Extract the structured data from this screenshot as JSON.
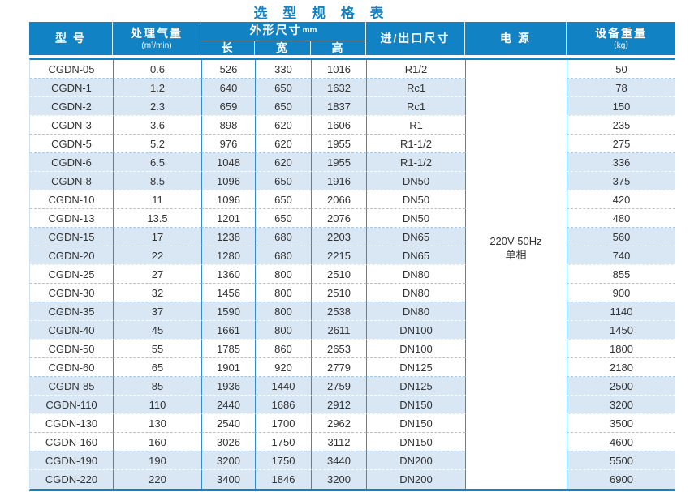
{
  "title": "选 型 规 格 表",
  "colors": {
    "accent": "#1182c4",
    "header_bg": "#1182c4",
    "stripe": "#d9e6f4",
    "line_blue": "#2f8fce",
    "dash_light": "#a3c7e6"
  },
  "header": {
    "model": "型 号",
    "capacity": "处理气量",
    "capacity_unit": "(m³/min)",
    "dimensions": "外形尺寸",
    "dimensions_unit": "mm",
    "length": "长",
    "width": "宽",
    "height": "高",
    "inlet_outlet": "进/出口尺寸",
    "power": "电 源",
    "weight": "设备重量",
    "weight_unit": "（kg）"
  },
  "power_supply": {
    "line1": "220V 50Hz",
    "line2": "单相"
  },
  "rows": [
    {
      "model": "CGDN-05",
      "capacity": "0.6",
      "length": "526",
      "width": "330",
      "height": "1016",
      "port": "R1/2",
      "weight": "50",
      "shaded": false
    },
    {
      "model": "CGDN-1",
      "capacity": "1.2",
      "length": "640",
      "width": "650",
      "height": "1632",
      "port": "Rc1",
      "weight": "78",
      "shaded": true
    },
    {
      "model": "CGDN-2",
      "capacity": "2.3",
      "length": "659",
      "width": "650",
      "height": "1837",
      "port": "Rc1",
      "weight": "150",
      "shaded": true
    },
    {
      "model": "CGDN-3",
      "capacity": "3.6",
      "length": "898",
      "width": "620",
      "height": "1606",
      "port": "R1",
      "weight": "235",
      "shaded": false
    },
    {
      "model": "CGDN-5",
      "capacity": "5.2",
      "length": "976",
      "width": "620",
      "height": "1955",
      "port": "R1-1/2",
      "weight": "275",
      "shaded": false
    },
    {
      "model": "CGDN-6",
      "capacity": "6.5",
      "length": "1048",
      "width": "620",
      "height": "1955",
      "port": "R1-1/2",
      "weight": "336",
      "shaded": true
    },
    {
      "model": "CGDN-8",
      "capacity": "8.5",
      "length": "1096",
      "width": "650",
      "height": "1916",
      "port": "DN50",
      "weight": "375",
      "shaded": true
    },
    {
      "model": "CGDN-10",
      "capacity": "11",
      "length": "1096",
      "width": "650",
      "height": "2066",
      "port": "DN50",
      "weight": "420",
      "shaded": false
    },
    {
      "model": "CGDN-13",
      "capacity": "13.5",
      "length": "1201",
      "width": "650",
      "height": "2076",
      "port": "DN50",
      "weight": "480",
      "shaded": false
    },
    {
      "model": "CGDN-15",
      "capacity": "17",
      "length": "1238",
      "width": "680",
      "height": "2203",
      "port": "DN65",
      "weight": "560",
      "shaded": true
    },
    {
      "model": "CGDN-20",
      "capacity": "22",
      "length": "1280",
      "width": "680",
      "height": "2215",
      "port": "DN65",
      "weight": "740",
      "shaded": true
    },
    {
      "model": "CGDN-25",
      "capacity": "27",
      "length": "1360",
      "width": "800",
      "height": "2510",
      "port": "DN80",
      "weight": "855",
      "shaded": false
    },
    {
      "model": "CGDN-30",
      "capacity": "32",
      "length": "1456",
      "width": "800",
      "height": "2510",
      "port": "DN80",
      "weight": "900",
      "shaded": false
    },
    {
      "model": "CGDN-35",
      "capacity": "37",
      "length": "1590",
      "width": "800",
      "height": "2538",
      "port": "DN80",
      "weight": "1140",
      "shaded": true
    },
    {
      "model": "CGDN-40",
      "capacity": "45",
      "length": "1661",
      "width": "800",
      "height": "2611",
      "port": "DN100",
      "weight": "1450",
      "shaded": true
    },
    {
      "model": "CGDN-50",
      "capacity": "55",
      "length": "1785",
      "width": "860",
      "height": "2653",
      "port": "DN100",
      "weight": "1800",
      "shaded": false
    },
    {
      "model": "CGDN-60",
      "capacity": "65",
      "length": "1901",
      "width": "920",
      "height": "2779",
      "port": "DN125",
      "weight": "2180",
      "shaded": false
    },
    {
      "model": "CGDN-85",
      "capacity": "85",
      "length": "1936",
      "width": "1440",
      "height": "2759",
      "port": "DN125",
      "weight": "2500",
      "shaded": true
    },
    {
      "model": "CGDN-110",
      "capacity": "110",
      "length": "2440",
      "width": "1686",
      "height": "2912",
      "port": "DN150",
      "weight": "3200",
      "shaded": true
    },
    {
      "model": "CGDN-130",
      "capacity": "130",
      "length": "2540",
      "width": "1700",
      "height": "2962",
      "port": "DN150",
      "weight": "3500",
      "shaded": false
    },
    {
      "model": "CGDN-160",
      "capacity": "160",
      "length": "3026",
      "width": "1750",
      "height": "3112",
      "port": "DN150",
      "weight": "4600",
      "shaded": false
    },
    {
      "model": "CGDN-190",
      "capacity": "190",
      "length": "3200",
      "width": "1750",
      "height": "3440",
      "port": "DN200",
      "weight": "5500",
      "shaded": true
    },
    {
      "model": "CGDN-220",
      "capacity": "220",
      "length": "3400",
      "width": "1846",
      "height": "3200",
      "port": "DN200",
      "weight": "6900",
      "shaded": true
    }
  ]
}
